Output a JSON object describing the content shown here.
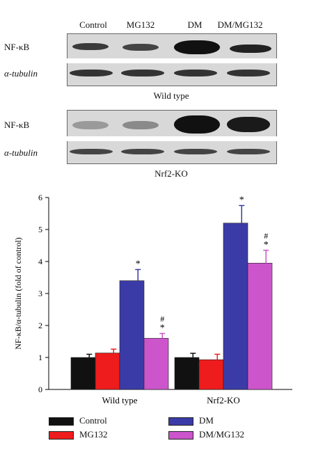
{
  "blots": {
    "lanes": [
      "Control",
      "MG132",
      "DM",
      "DM/MG132"
    ],
    "rows": [
      "NF-κB",
      "α-tubulin"
    ],
    "panels": [
      {
        "caption": "Wild type"
      },
      {
        "caption": "Nrf2-KO"
      }
    ]
  },
  "chart_data": {
    "type": "bar",
    "categories": [
      "Wild type",
      "Nrf2-KO"
    ],
    "ylabel": "NF-κB/α-tubulin (fold of control)",
    "ylim": [
      0,
      6
    ],
    "yticks": [
      0,
      1,
      2,
      3,
      4,
      5,
      6
    ],
    "series": [
      {
        "name": "Control",
        "color": "#111111",
        "values": [
          1.0,
          1.0
        ],
        "errors": [
          0.1,
          0.13
        ]
      },
      {
        "name": "MG132",
        "color": "#ee1c1c",
        "values": [
          1.14,
          0.93
        ],
        "errors": [
          0.12,
          0.17
        ]
      },
      {
        "name": "DM",
        "color": "#3b3ba8",
        "values": [
          3.4,
          5.2
        ],
        "errors": [
          0.35,
          0.55
        ]
      },
      {
        "name": "DM/MG132",
        "color": "#cc55cc",
        "values": [
          1.6,
          3.95
        ],
        "errors": [
          0.15,
          0.4
        ]
      }
    ],
    "annotations": [
      {
        "series": "DM",
        "category": "Wild type",
        "marks": [
          "*"
        ]
      },
      {
        "series": "DM/MG132",
        "category": "Wild type",
        "marks": [
          "#",
          "*"
        ]
      },
      {
        "series": "DM",
        "category": "Nrf2-KO",
        "marks": [
          "*"
        ]
      },
      {
        "series": "DM/MG132",
        "category": "Nrf2-KO",
        "marks": [
          "#",
          "*"
        ]
      }
    ],
    "legend": "bottom",
    "grid": false
  }
}
